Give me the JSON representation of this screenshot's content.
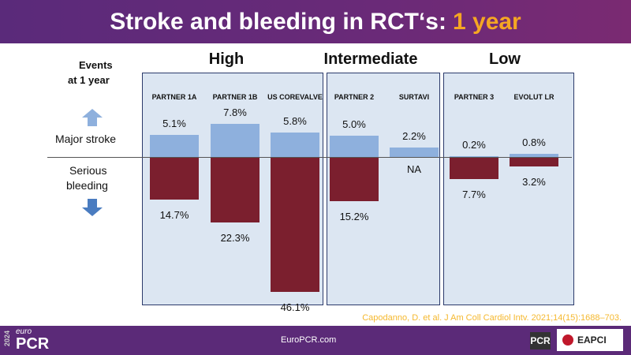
{
  "title": {
    "main": "Stroke and bleeding in RCT‘s:",
    "highlight": "1 year"
  },
  "chart_data": {
    "type": "bar",
    "title": "Stroke and bleeding in RCT‘s: 1 year",
    "ylabel": "Events at 1 year",
    "groups": [
      {
        "name": "High",
        "trials": [
          "PARTNER 1A",
          "PARTNER 1B",
          "US COREVALVE"
        ]
      },
      {
        "name": "Intermediate",
        "trials": [
          "PARTNER 2",
          "SURTAVI"
        ]
      },
      {
        "name": "Low",
        "trials": [
          "PARTNER 3",
          "EVOLUT LR"
        ]
      }
    ],
    "categories": [
      "PARTNER 1A",
      "PARTNER 1B",
      "US COREVALVE",
      "PARTNER 2",
      "SURTAVI",
      "PARTNER 3",
      "EVOLUT LR"
    ],
    "series": [
      {
        "name": "Major stroke",
        "color": "#8eb0dd",
        "values": [
          5.1,
          7.8,
          5.8,
          5.0,
          2.2,
          0.2,
          0.8
        ],
        "labels": [
          "5.1%",
          "7.8%",
          "5.8%",
          "5.0%",
          "2.2%",
          "0.2%",
          "0.8%"
        ]
      },
      {
        "name": "Serious bleeding",
        "color": "#7b1f2e",
        "values": [
          14.7,
          22.3,
          46.1,
          15.2,
          null,
          7.7,
          3.2
        ],
        "labels": [
          "14.7%",
          "22.3%",
          "46.1%",
          "15.2%",
          "NA",
          "7.7%",
          "3.2%"
        ]
      }
    ]
  },
  "side": {
    "events": "Events",
    "at_year": "at 1 year",
    "stroke": "Major stroke",
    "bleeding1": "Serious",
    "bleeding2": "bleeding"
  },
  "citation": "Capodanno, D. et al. J Am Coll Cardiol Intv. 2021;14(15):1688–703.",
  "footer": {
    "year": "2024",
    "brand_small": "euro",
    "brand": "PCR",
    "url": "EuroPCR.com",
    "logo1": "PCR",
    "logo2": "EAPCI"
  }
}
